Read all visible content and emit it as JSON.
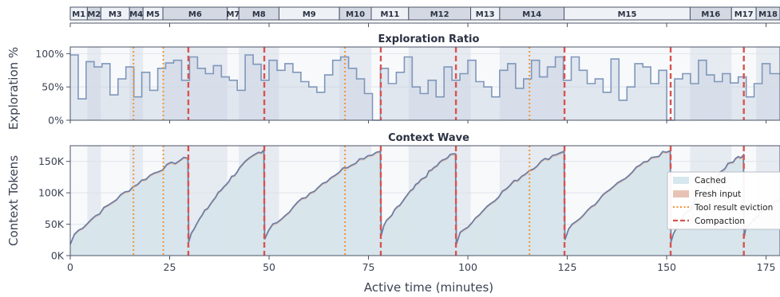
{
  "chart_data": [
    {
      "type": "timeline",
      "segments": [
        {
          "label": "M1",
          "start": 0,
          "end": 4.3
        },
        {
          "label": "M2",
          "start": 4.3,
          "end": 7.7
        },
        {
          "label": "M3",
          "start": 7.7,
          "end": 14.9
        },
        {
          "label": "M4",
          "start": 14.9,
          "end": 18.3
        },
        {
          "label": "M5",
          "start": 18.3,
          "end": 23.3
        },
        {
          "label": "M6",
          "start": 23.3,
          "end": 39.5
        },
        {
          "label": "M7",
          "start": 39.5,
          "end": 42.4
        },
        {
          "label": "M8",
          "start": 42.4,
          "end": 52.5
        },
        {
          "label": "M9",
          "start": 52.5,
          "end": 67.7
        },
        {
          "label": "M10",
          "start": 67.7,
          "end": 75.7
        },
        {
          "label": "M11",
          "start": 75.7,
          "end": 85.1
        },
        {
          "label": "M12",
          "start": 85.1,
          "end": 100.7
        },
        {
          "label": "M13",
          "start": 100.7,
          "end": 108.0
        },
        {
          "label": "M14",
          "start": 108.0,
          "end": 124.2
        },
        {
          "label": "M15",
          "start": 124.2,
          "end": 155.9
        },
        {
          "label": "M16",
          "start": 155.9,
          "end": 166.3
        },
        {
          "label": "M17",
          "start": 166.3,
          "end": 172.5
        },
        {
          "label": "M18",
          "start": 172.5,
          "end": 178.5
        }
      ]
    },
    {
      "type": "step",
      "title": "Exploration Ratio",
      "ylabel": "Exploration %",
      "yticks": [
        "0%",
        "50%",
        "100%"
      ],
      "ylim": [
        0,
        110
      ],
      "xlim": [
        0,
        178.5
      ],
      "grid": true,
      "x": [
        0,
        2,
        4,
        6,
        8,
        10,
        12,
        14,
        16,
        18,
        20,
        22,
        24,
        26,
        28,
        30,
        32,
        34,
        36,
        38,
        40,
        42,
        44,
        46,
        48,
        50,
        52,
        54,
        56,
        58,
        60,
        62,
        64,
        66,
        68,
        70,
        72,
        74,
        76,
        78,
        80,
        82,
        84,
        86,
        88,
        90,
        92,
        94,
        96,
        98,
        100,
        102,
        104,
        106,
        108,
        110,
        112,
        114,
        116,
        118,
        120,
        122,
        124,
        126,
        128,
        130,
        132,
        134,
        136,
        138,
        140,
        142,
        144,
        146,
        148,
        150,
        152,
        154,
        156,
        158,
        160,
        162,
        164,
        166,
        168,
        170,
        172,
        174,
        176
      ],
      "values": [
        98,
        32,
        88,
        80,
        85,
        38,
        62,
        80,
        35,
        72,
        45,
        78,
        86,
        90,
        60,
        95,
        78,
        70,
        82,
        65,
        60,
        45,
        98,
        84,
        60,
        90,
        75,
        85,
        72,
        58,
        50,
        42,
        68,
        90,
        95,
        78,
        62,
        40,
        0,
        78,
        55,
        72,
        95,
        50,
        40,
        60,
        35,
        80,
        60,
        70,
        90,
        58,
        50,
        35,
        75,
        85,
        48,
        62,
        90,
        65,
        80,
        95,
        60,
        95,
        75,
        55,
        62,
        42,
        92,
        30,
        50,
        85,
        80,
        55,
        75,
        0,
        62,
        70,
        55,
        90,
        68,
        58,
        70,
        56,
        65,
        35,
        55,
        85,
        70
      ]
    },
    {
      "type": "area",
      "title": "Context Wave",
      "xlabel": "Active time (minutes)",
      "ylabel": "Context Tokens",
      "yticks": [
        "0K",
        "50K",
        "100K",
        "150K"
      ],
      "xticks": [
        "0",
        "25",
        "50",
        "75",
        "100",
        "125",
        "150",
        "175"
      ],
      "ylim": [
        0,
        175
      ],
      "xlim": [
        0,
        178.5
      ],
      "grid": true,
      "series": [
        {
          "name": "Cached",
          "color": "#d7e7ee"
        },
        {
          "name": "Fresh input",
          "color": "#e8c3b5"
        }
      ],
      "waves": [
        {
          "start": 0,
          "end": 29.6,
          "base": 28,
          "peak": 155
        },
        {
          "start": 29.8,
          "end": 48.7,
          "base": 32,
          "peak": 168
        },
        {
          "start": 48.9,
          "end": 78.0,
          "base": 36,
          "peak": 166
        },
        {
          "start": 78.2,
          "end": 96.9,
          "base": 42,
          "peak": 162
        },
        {
          "start": 97.1,
          "end": 124.2,
          "base": 28,
          "peak": 166
        },
        {
          "start": 124.4,
          "end": 150.9,
          "base": 35,
          "peak": 167
        },
        {
          "start": 151.1,
          "end": 169.3,
          "base": 32,
          "peak": 160
        },
        {
          "start": 169.5,
          "end": 178.5,
          "base": 40,
          "peak": 90
        }
      ],
      "compaction": [
        29.7,
        48.8,
        78.1,
        97.0,
        124.3,
        151.0,
        169.4
      ],
      "tool_result_eviction": [
        15.9,
        23.4,
        69.1,
        115.5
      ],
      "legend": {
        "placement": "right",
        "items": [
          "Cached",
          "Fresh input",
          "Tool result eviction",
          "Compaction"
        ]
      },
      "colors": {
        "line": "#6b7fa3",
        "compaction": "#d9534f",
        "eviction": "#f0963c"
      }
    }
  ]
}
